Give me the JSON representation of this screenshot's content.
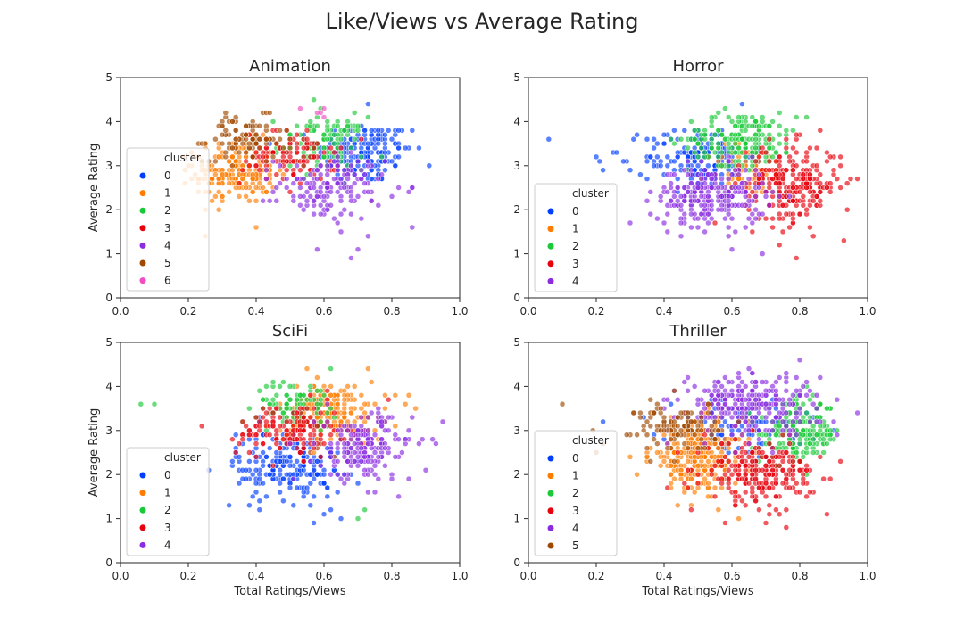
{
  "figure": {
    "title": "Like/Views vs Average Rating"
  },
  "cluster_colors": [
    "#023eff",
    "#ff7c00",
    "#1ac938",
    "#e8000b",
    "#8b2be2",
    "#9f4800",
    "#f14cc1"
  ],
  "chart_data": [
    {
      "type": "scatter",
      "title": "Animation",
      "xlabel": "",
      "ylabel": "Average Rating",
      "xlim": [
        0,
        1
      ],
      "ylim": [
        0,
        5
      ],
      "xticks": [
        "0.0",
        "0.2",
        "0.4",
        "0.6",
        "0.8",
        "1.0"
      ],
      "yticks": [
        "0",
        "1",
        "2",
        "3",
        "4",
        "5"
      ],
      "grid": false,
      "legend": {
        "title": "cluster",
        "placement": "left",
        "entries": [
          "0",
          "1",
          "2",
          "3",
          "4",
          "5",
          "6"
        ]
      },
      "series": [
        {
          "name": "0",
          "cx": 0.72,
          "cy": 3.3,
          "sx": 0.07,
          "sy": 0.35,
          "n": 170,
          "extra": [
            [
              0.73,
              4.4
            ],
            [
              0.86,
              3.8
            ],
            [
              0.84,
              3.4
            ]
          ]
        },
        {
          "name": "1",
          "cx": 0.34,
          "cy": 2.85,
          "sx": 0.06,
          "sy": 0.35,
          "n": 190,
          "extra": [
            [
              0.2,
              3.0
            ],
            [
              0.22,
              3.2
            ],
            [
              0.4,
              1.6
            ]
          ]
        },
        {
          "name": "2",
          "cx": 0.6,
          "cy": 3.5,
          "sx": 0.06,
          "sy": 0.3,
          "n": 110,
          "extra": [
            [
              0.57,
              4.5
            ],
            [
              0.45,
              4.0
            ]
          ]
        },
        {
          "name": "3",
          "cx": 0.5,
          "cy": 3.2,
          "sx": 0.07,
          "sy": 0.3,
          "n": 110,
          "extra": []
        },
        {
          "name": "4",
          "cx": 0.62,
          "cy": 2.5,
          "sx": 0.08,
          "sy": 0.35,
          "n": 150,
          "extra": [
            [
              0.68,
              0.9
            ],
            [
              0.7,
              1.1
            ],
            [
              0.65,
              1.5
            ],
            [
              0.86,
              1.6
            ],
            [
              0.86,
              2.5
            ]
          ]
        },
        {
          "name": "5",
          "cx": 0.37,
          "cy": 3.6,
          "sx": 0.06,
          "sy": 0.25,
          "n": 95,
          "extra": [
            [
              0.25,
              3.5
            ],
            [
              0.3,
              3.9
            ],
            [
              0.44,
              4.2
            ]
          ]
        },
        {
          "name": "6",
          "cx": 0.58,
          "cy": 4.15,
          "sx": 0.02,
          "sy": 0.15,
          "n": 5,
          "extra": []
        }
      ]
    },
    {
      "type": "scatter",
      "title": "Horror",
      "xlabel": "",
      "ylabel": "",
      "xlim": [
        0,
        1
      ],
      "ylim": [
        0,
        5
      ],
      "xticks": [
        "0.0",
        "0.2",
        "0.4",
        "0.6",
        "0.8",
        "1.0"
      ],
      "yticks": [
        "0",
        "1",
        "2",
        "3",
        "4",
        "5"
      ],
      "grid": false,
      "legend": {
        "title": "cluster",
        "placement": "left",
        "entries": [
          "0",
          "1",
          "2",
          "3",
          "4"
        ]
      },
      "series": [
        {
          "name": "0",
          "cx": 0.5,
          "cy": 3.2,
          "sx": 0.08,
          "sy": 0.35,
          "n": 170,
          "extra": [
            [
              0.06,
              3.6
            ],
            [
              0.21,
              3.1
            ],
            [
              0.2,
              3.2
            ],
            [
              0.22,
              2.9
            ],
            [
              0.26,
              3.3
            ]
          ]
        },
        {
          "name": "1",
          "cx": 0.65,
          "cy": 2.9,
          "sx": 0.06,
          "sy": 0.3,
          "n": 60,
          "extra": []
        },
        {
          "name": "2",
          "cx": 0.63,
          "cy": 3.6,
          "sx": 0.08,
          "sy": 0.3,
          "n": 180,
          "extra": [
            [
              0.56,
              4.2
            ],
            [
              0.82,
              4.1
            ],
            [
              0.78,
              3.8
            ]
          ]
        },
        {
          "name": "3",
          "cx": 0.78,
          "cy": 2.6,
          "sx": 0.07,
          "sy": 0.45,
          "n": 240,
          "extra": [
            [
              0.97,
              2.7
            ],
            [
              0.79,
              0.9
            ],
            [
              0.74,
              1.2
            ]
          ]
        },
        {
          "name": "4",
          "cx": 0.54,
          "cy": 2.3,
          "sx": 0.08,
          "sy": 0.35,
          "n": 230,
          "extra": [
            [
              0.69,
              1.0
            ],
            [
              0.6,
              1.1
            ],
            [
              0.35,
              2.2
            ],
            [
              0.36,
              1.9
            ]
          ]
        }
      ]
    },
    {
      "type": "scatter",
      "title": "SciFi",
      "xlabel": "Total Ratings/Views",
      "ylabel": "Average Rating",
      "xlim": [
        0,
        1
      ],
      "ylim": [
        0,
        5
      ],
      "xticks": [
        "0.0",
        "0.2",
        "0.4",
        "0.6",
        "0.8",
        "1.0"
      ],
      "yticks": [
        "0",
        "1",
        "2",
        "3",
        "4",
        "5"
      ],
      "grid": false,
      "legend": {
        "title": "cluster",
        "placement": "left",
        "entries": [
          "0",
          "1",
          "2",
          "3",
          "4"
        ]
      },
      "series": [
        {
          "name": "0",
          "cx": 0.5,
          "cy": 2.2,
          "sx": 0.08,
          "sy": 0.4,
          "n": 220,
          "extra": [
            [
              0.57,
              0.9
            ],
            [
              0.65,
              1.0
            ],
            [
              0.32,
              1.3
            ],
            [
              0.38,
              1.3
            ]
          ]
        },
        {
          "name": "1",
          "cx": 0.62,
          "cy": 3.4,
          "sx": 0.08,
          "sy": 0.35,
          "n": 190,
          "extra": [
            [
              0.73,
              4.4
            ],
            [
              0.55,
              4.4
            ],
            [
              0.87,
              3.5
            ]
          ]
        },
        {
          "name": "2",
          "cx": 0.52,
          "cy": 3.6,
          "sx": 0.06,
          "sy": 0.25,
          "n": 90,
          "extra": [
            [
              0.06,
              3.6
            ],
            [
              0.1,
              3.6
            ],
            [
              0.62,
              4.4
            ],
            [
              0.7,
              1.0
            ],
            [
              0.72,
              1.2
            ]
          ]
        },
        {
          "name": "3",
          "cx": 0.5,
          "cy": 3.0,
          "sx": 0.08,
          "sy": 0.3,
          "n": 150,
          "extra": []
        },
        {
          "name": "4",
          "cx": 0.72,
          "cy": 2.6,
          "sx": 0.07,
          "sy": 0.4,
          "n": 180,
          "extra": [
            [
              0.95,
              3.2
            ],
            [
              0.92,
              2.8
            ],
            [
              0.82,
              1.5
            ]
          ]
        }
      ]
    },
    {
      "type": "scatter",
      "title": "Thriller",
      "xlabel": "Total Ratings/Views",
      "ylabel": "",
      "xlim": [
        0,
        1
      ],
      "ylim": [
        0,
        5
      ],
      "xticks": [
        "0.0",
        "0.2",
        "0.4",
        "0.6",
        "0.8",
        "1.0"
      ],
      "yticks": [
        "0",
        "1",
        "2",
        "3",
        "4",
        "5"
      ],
      "grid": false,
      "legend": {
        "title": "cluster",
        "placement": "left",
        "entries": [
          "0",
          "1",
          "2",
          "3",
          "4",
          "5"
        ]
      },
      "series": [
        {
          "name": "0",
          "cx": 0.62,
          "cy": 3.05,
          "sx": 0.1,
          "sy": 0.3,
          "n": 90,
          "extra": [
            [
              0.22,
              3.2
            ],
            [
              0.9,
              3.0
            ]
          ]
        },
        {
          "name": "1",
          "cx": 0.5,
          "cy": 2.4,
          "sx": 0.07,
          "sy": 0.4,
          "n": 280,
          "extra": [
            [
              0.3,
              2.4
            ]
          ]
        },
        {
          "name": "2",
          "cx": 0.8,
          "cy": 2.95,
          "sx": 0.06,
          "sy": 0.35,
          "n": 180,
          "extra": []
        },
        {
          "name": "3",
          "cx": 0.68,
          "cy": 2.05,
          "sx": 0.08,
          "sy": 0.35,
          "n": 240,
          "extra": [
            [
              0.88,
              1.1
            ],
            [
              0.58,
              0.9
            ],
            [
              0.92,
              2.3
            ]
          ]
        },
        {
          "name": "4",
          "cx": 0.65,
          "cy": 3.6,
          "sx": 0.1,
          "sy": 0.35,
          "n": 260,
          "extra": [
            [
              0.8,
              4.6
            ],
            [
              0.97,
              3.4
            ]
          ]
        },
        {
          "name": "5",
          "cx": 0.44,
          "cy": 3.1,
          "sx": 0.06,
          "sy": 0.3,
          "n": 110,
          "extra": [
            [
              0.1,
              3.6
            ],
            [
              0.2,
              2.5
            ],
            [
              0.19,
              3.0
            ]
          ]
        }
      ]
    }
  ]
}
